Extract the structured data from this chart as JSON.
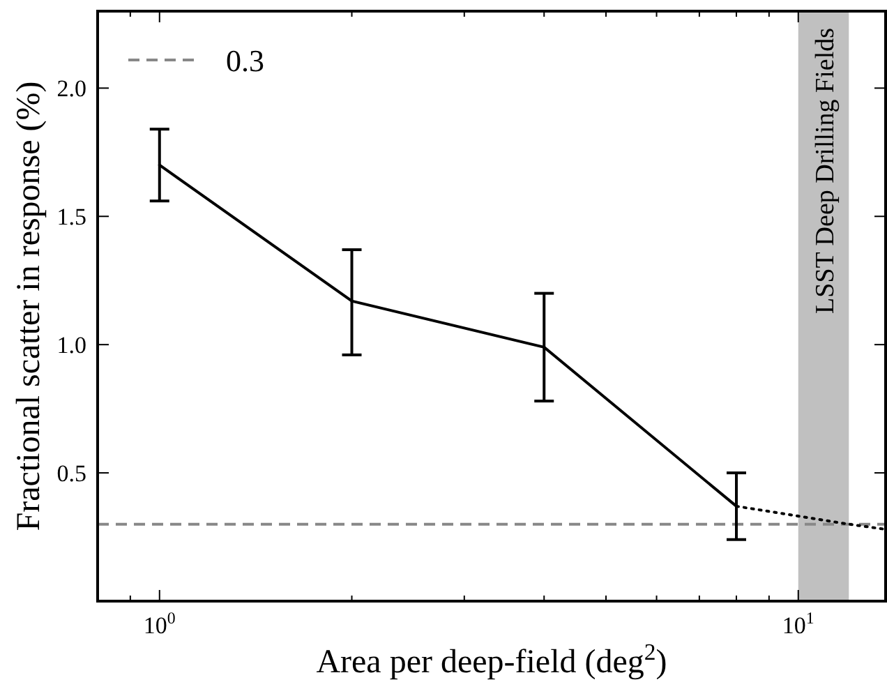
{
  "chart_data": {
    "type": "line",
    "xlabel": "Area per deep-field (deg$^{2}$)",
    "ylabel": "Fractional scatter in response (%)",
    "log": "x",
    "xlim": [
      0.8,
      13.7
    ],
    "ylim": [
      0,
      2.3
    ],
    "xticks": [
      {
        "value": 0.9,
        "label": null
      },
      {
        "value": 1,
        "label": "10$^{0}$"
      },
      {
        "value": 2,
        "label": null
      },
      {
        "value": 3,
        "label": null
      },
      {
        "value": 4,
        "label": null
      },
      {
        "value": 5,
        "label": null
      },
      {
        "value": 6,
        "label": null
      },
      {
        "value": 7,
        "label": null
      },
      {
        "value": 8,
        "label": null
      },
      {
        "value": 9,
        "label": null
      },
      {
        "value": 10,
        "label": "10$^{1}$"
      }
    ],
    "yticks": [
      0.5,
      {
        "value": 1,
        "label": "1.0"
      },
      1.5,
      {
        "value": 2,
        "label": "2.0"
      }
    ],
    "marker": "none",
    "legend": "top left",
    "series": [
      {
        "color": "#000000",
        "line_style": "solid",
        "x": [
          1,
          2,
          4,
          8
        ],
        "values": [
          1.7,
          1.17,
          0.99,
          0.37
        ],
        "errors": [
          [
            1.56,
            1.84
          ],
          [
            0.96,
            1.37
          ],
          [
            0.78,
            1.2
          ],
          [
            0.24,
            0.5
          ]
        ]
      },
      {
        "color": "#000000",
        "line_style": "dotted",
        "x": [
          8,
          12,
          13.7
        ],
        "values": [
          0.37,
          0.3,
          0.28
        ]
      }
    ],
    "ref_lines": [
      {
        "axis": "y",
        "value": 0.3,
        "label": "0.3",
        "color": "#888888",
        "line_style": "dashed"
      }
    ],
    "bands": [
      {
        "axis": "x",
        "from": 10,
        "to": 12,
        "label": "LSST Deep Drilling Fields",
        "color": "#c0c0c0"
      }
    ]
  }
}
